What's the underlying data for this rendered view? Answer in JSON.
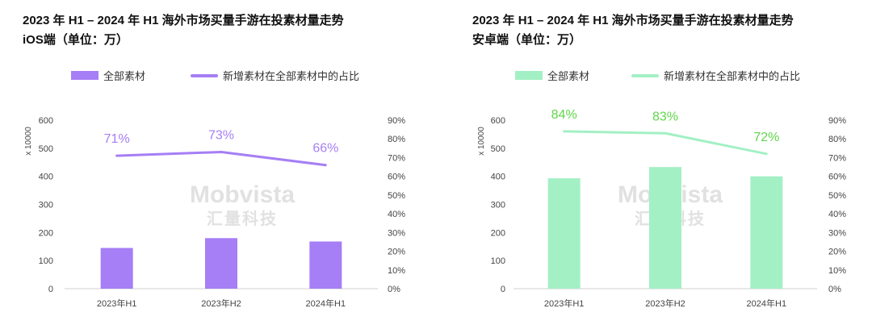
{
  "watermark": {
    "brand": "Mobvista",
    "brand_cn": "汇量科技"
  },
  "chart_data": [
    {
      "type": "bar+line",
      "title_line1": "2023 年 H1 – 2024 年 H1 海外市场买量手游在投素材量走势",
      "title_line2": "iOS端（单位：万）",
      "legend_bar": "全部素材",
      "legend_line": "新增素材在全部素材中的占比",
      "unit_label": "x 10000",
      "categories": [
        "2023年H1",
        "2023年H2",
        "2024年H1"
      ],
      "bar_values": [
        145,
        180,
        168
      ],
      "line_values": [
        71,
        73,
        66
      ],
      "line_labels": [
        "71%",
        "73%",
        "66%"
      ],
      "y_left_ticks": [
        "0",
        "100",
        "200",
        "300",
        "400",
        "500",
        "600"
      ],
      "y_left_range": [
        0,
        600
      ],
      "y_right_ticks": [
        "0%",
        "10%",
        "20%",
        "30%",
        "40%",
        "50%",
        "60%",
        "70%",
        "80%",
        "90%"
      ],
      "y_right_range": [
        0,
        90
      ],
      "bar_color": "#a67ef5",
      "line_color": "#a67ef5",
      "label_color": "#a67ef5"
    },
    {
      "type": "bar+line",
      "title_line1": "2023 年 H1 – 2024 年 H1 海外市场买量手游在投素材量走势",
      "title_line2": "安卓端（单位：万）",
      "legend_bar": "全部素材",
      "legend_line": "新增素材在全部素材中的占比",
      "unit_label": "x 10000",
      "categories": [
        "2023年H1",
        "2023年H2",
        "2024年H1"
      ],
      "bar_values": [
        393,
        433,
        400
      ],
      "line_values": [
        84,
        83,
        72
      ],
      "line_labels": [
        "84%",
        "83%",
        "72%"
      ],
      "y_left_ticks": [
        "0",
        "100",
        "200",
        "300",
        "400",
        "500",
        "600"
      ],
      "y_left_range": [
        0,
        600
      ],
      "y_right_ticks": [
        "0%",
        "10%",
        "20%",
        "30%",
        "40%",
        "50%",
        "60%",
        "70%",
        "80%",
        "90%"
      ],
      "y_right_range": [
        0,
        90
      ],
      "bar_color": "#a3f0c5",
      "line_color": "#a3f0c5",
      "label_color": "#5fd64a"
    }
  ]
}
